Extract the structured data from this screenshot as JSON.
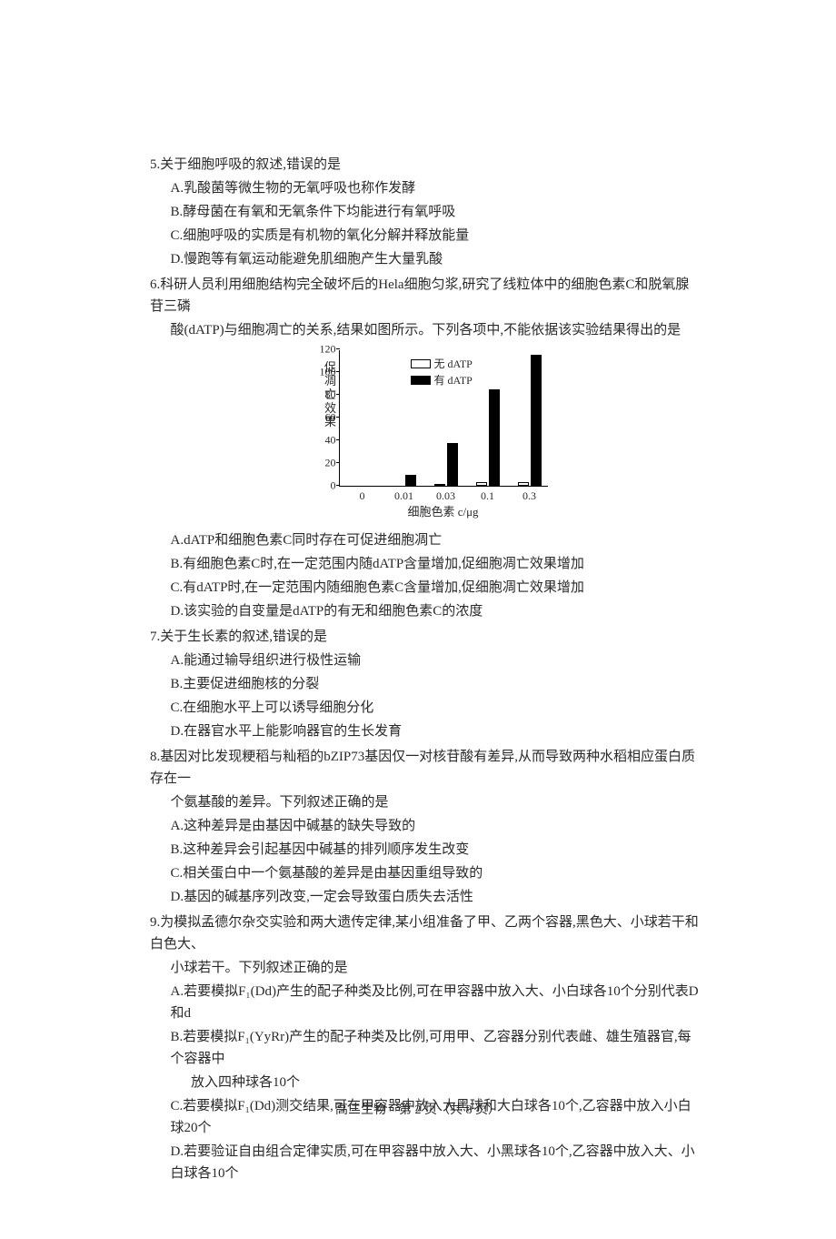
{
  "q5": {
    "stem": "5.关于细胞呼吸的叙述,错误的是",
    "A": "A.乳酸菌等微生物的无氧呼吸也称作发酵",
    "B": "B.酵母菌在有氧和无氧条件下均能进行有氧呼吸",
    "C": "C.细胞呼吸的实质是有机物的氧化分解并释放能量",
    "D": "D.慢跑等有氧运动能避免肌细胞产生大量乳酸"
  },
  "q6": {
    "stem1": "6.科研人员利用细胞结构完全破坏后的Hela细胞匀浆,研究了线粒体中的细胞色素C和脱氧腺苷三磷",
    "stem2": "酸(dATP)与细胞凋亡的关系,结果如图所示。下列各项中,不能依据该实验结果得出的是",
    "A": "A.dATP和细胞色素C同时存在可促进细胞凋亡",
    "B": "B.有细胞色素C时,在一定范围内随dATP含量增加,促细胞凋亡效果增加",
    "C": "C.有dATP时,在一定范围内随细胞色素C含量增加,促细胞凋亡效果增加",
    "D": "D.该实验的自变量是dATP的有无和细胞色素C的浓度"
  },
  "chart": {
    "ylabel": "促凋亡效果",
    "ymax": 120,
    "yticks": [
      0,
      20,
      40,
      60,
      80,
      100,
      120
    ],
    "xlabel": "细胞色素 c/μg",
    "xticks": [
      "0",
      "0.01",
      "0.03",
      "0.1",
      "0.3"
    ],
    "legend_no": "无 dATP",
    "legend_yes": "有 dATP",
    "series_no": [
      0,
      0,
      2,
      3,
      3
    ],
    "series_yes": [
      0,
      10,
      38,
      85,
      115
    ],
    "bar_open_color": "#ffffff",
    "bar_solid_color": "#000000",
    "axis_color": "#000000",
    "font_size_axis": 12
  },
  "q7": {
    "stem": "7.关于生长素的叙述,错误的是",
    "A": "A.能通过输导组织进行极性运输",
    "B": "B.主要促进细胞核的分裂",
    "C": "C.在细胞水平上可以诱导细胞分化",
    "D": "D.在器官水平上能影响器官的生长发育"
  },
  "q8": {
    "stem1": "8.基因对比发现粳稻与籼稻的bZIP73基因仅一对核苷酸有差异,从而导致两种水稻相应蛋白质存在一",
    "stem2": "个氨基酸的差异。下列叙述正确的是",
    "A": "A.这种差异是由基因中碱基的缺失导致的",
    "B": "B.这种差异会引起基因中碱基的排列顺序发生改变",
    "C": "C.相关蛋白中一个氨基酸的差异是由基因重组导致的",
    "D": "D.基因的碱基序列改变,一定会导致蛋白质失去活性"
  },
  "q9": {
    "stem1": "9.为模拟孟德尔杂交实验和两大遗传定律,某小组准备了甲、乙两个容器,黑色大、小球若干和白色大、",
    "stem2": "小球若干。下列叙述正确的是",
    "A": "A.若要模拟F₁(Dd)产生的配子种类及比例,可在甲容器中放入大、小白球各10个分别代表D和d",
    "B1": "B.若要模拟F₁(YyRr)产生的配子种类及比例,可用甲、乙容器分别代表雌、雄生殖器官,每个容器中",
    "B2": "放入四种球各10个",
    "C": "C.若要模拟F₁(Dd)测交结果,可在甲容器中放入大黑球和大白球各10个,乙容器中放入小白球20个",
    "D": "D.若要验证自由组合定律实质,可在甲容器中放入大、小黑球各10个,乙容器中放入大、小白球各10个"
  },
  "footer": "高三生物　第 2 页（共 8 页）"
}
